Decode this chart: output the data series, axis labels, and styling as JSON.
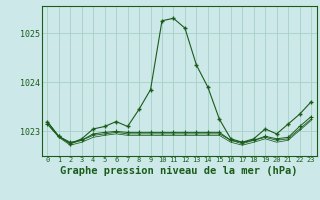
{
  "title": "Graphe pression niveau de la mer (hPa)",
  "x_labels": [
    "0",
    "1",
    "2",
    "3",
    "4",
    "5",
    "6",
    "7",
    "8",
    "9",
    "10",
    "11",
    "12",
    "13",
    "14",
    "15",
    "16",
    "17",
    "18",
    "19",
    "20",
    "21",
    "22",
    "23"
  ],
  "hours": [
    0,
    1,
    2,
    3,
    4,
    5,
    6,
    7,
    8,
    9,
    10,
    11,
    12,
    13,
    14,
    15,
    16,
    17,
    18,
    19,
    20,
    21,
    22,
    23
  ],
  "main_line": [
    1023.2,
    1022.9,
    1022.75,
    1022.85,
    1023.05,
    1023.1,
    1023.2,
    1023.1,
    1023.45,
    1023.85,
    1025.25,
    1025.3,
    1025.1,
    1024.35,
    1023.9,
    1023.25,
    1022.85,
    1022.78,
    1022.85,
    1023.05,
    1022.95,
    1023.15,
    1023.35,
    1023.6
  ],
  "flat_line1": [
    1023.15,
    1022.9,
    1022.78,
    1022.82,
    1022.95,
    1022.98,
    1023.0,
    1022.98,
    1022.98,
    1022.98,
    1022.98,
    1022.98,
    1022.98,
    1022.98,
    1022.98,
    1022.98,
    1022.82,
    1022.78,
    1022.82,
    1022.9,
    1022.85,
    1022.88,
    1023.1,
    1023.3
  ],
  "flat_line2": [
    1023.2,
    1022.9,
    1022.75,
    1022.82,
    1022.92,
    1022.95,
    1022.98,
    1022.95,
    1022.95,
    1022.95,
    1022.95,
    1022.95,
    1022.95,
    1022.95,
    1022.95,
    1022.95,
    1022.82,
    1022.75,
    1022.82,
    1022.88,
    1022.82,
    1022.85,
    1023.05,
    1023.25
  ],
  "flat_line3": [
    1023.15,
    1022.88,
    1022.72,
    1022.78,
    1022.88,
    1022.92,
    1022.95,
    1022.92,
    1022.92,
    1022.92,
    1022.92,
    1022.92,
    1022.92,
    1022.92,
    1022.92,
    1022.92,
    1022.78,
    1022.72,
    1022.78,
    1022.85,
    1022.78,
    1022.82,
    1023.02,
    1023.22
  ],
  "ylim_min": 1022.5,
  "ylim_max": 1025.55,
  "yticks": [
    1023,
    1024
  ],
  "ytick_top": 1025,
  "bg_color": "#cce8e8",
  "grid_color": "#a8d0c8",
  "line_color": "#1a5c1a",
  "title_fontsize": 7.5,
  "xlabel_fontsize": 5.0,
  "ylabel_fontsize": 6.0
}
